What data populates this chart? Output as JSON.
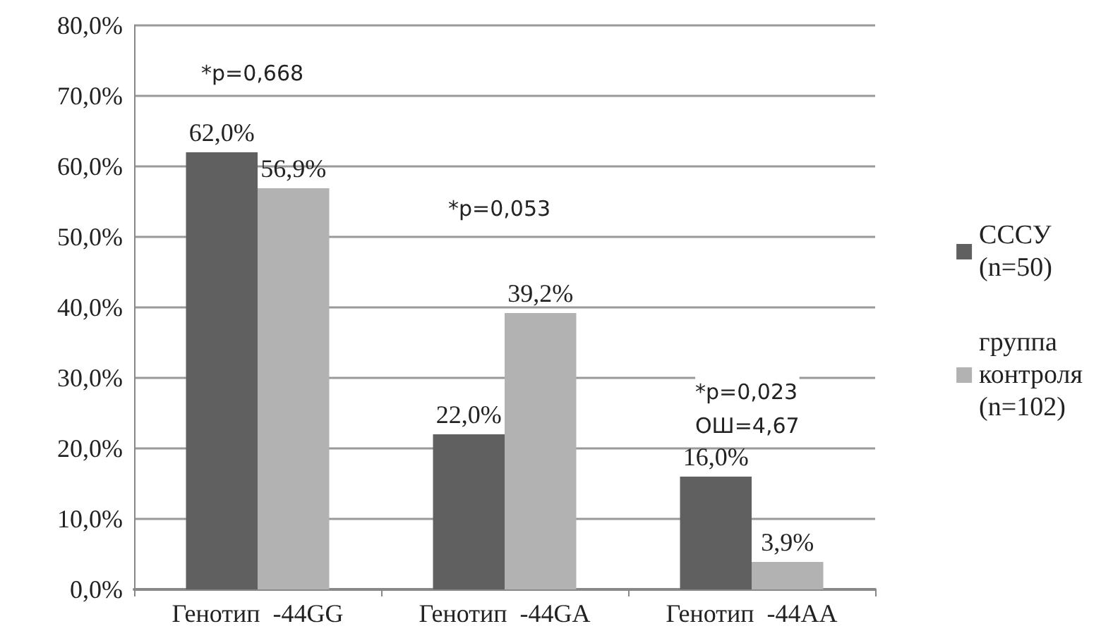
{
  "chart_data": {
    "type": "bar",
    "categories": [
      "Генотип  -44GG",
      "Генотип  -44GA",
      "Генотип  -44AA"
    ],
    "series": [
      {
        "name": "СССУ (n=50)",
        "color": "#606060",
        "values": [
          62.0,
          22.0,
          16.0
        ],
        "value_labels": [
          "62,0%",
          "22,0%",
          "16,0%"
        ]
      },
      {
        "name": "группа контроля (n=102)",
        "color": "#b2b2b2",
        "values": [
          56.9,
          39.2,
          3.9
        ],
        "value_labels": [
          "56,9%",
          "39,2%",
          "3,9%"
        ]
      }
    ],
    "ylim": [
      0,
      80
    ],
    "yticks": [
      {
        "value": 0,
        "label": "0,0%"
      },
      {
        "value": 10,
        "label": "10,0%"
      },
      {
        "value": 20,
        "label": "20,0%"
      },
      {
        "value": 30,
        "label": "30,0%"
      },
      {
        "value": 40,
        "label": "40,0%"
      },
      {
        "value": 50,
        "label": "50,0%"
      },
      {
        "value": 60,
        "label": "60,0%"
      },
      {
        "value": 70,
        "label": "70,0%"
      },
      {
        "value": 80,
        "label": "80,0%"
      }
    ],
    "grid": "y",
    "legend": "right",
    "annotations": [
      "*p=0,668",
      "*p=0,053",
      "*p=0,023\nОШ=4,67"
    ]
  }
}
